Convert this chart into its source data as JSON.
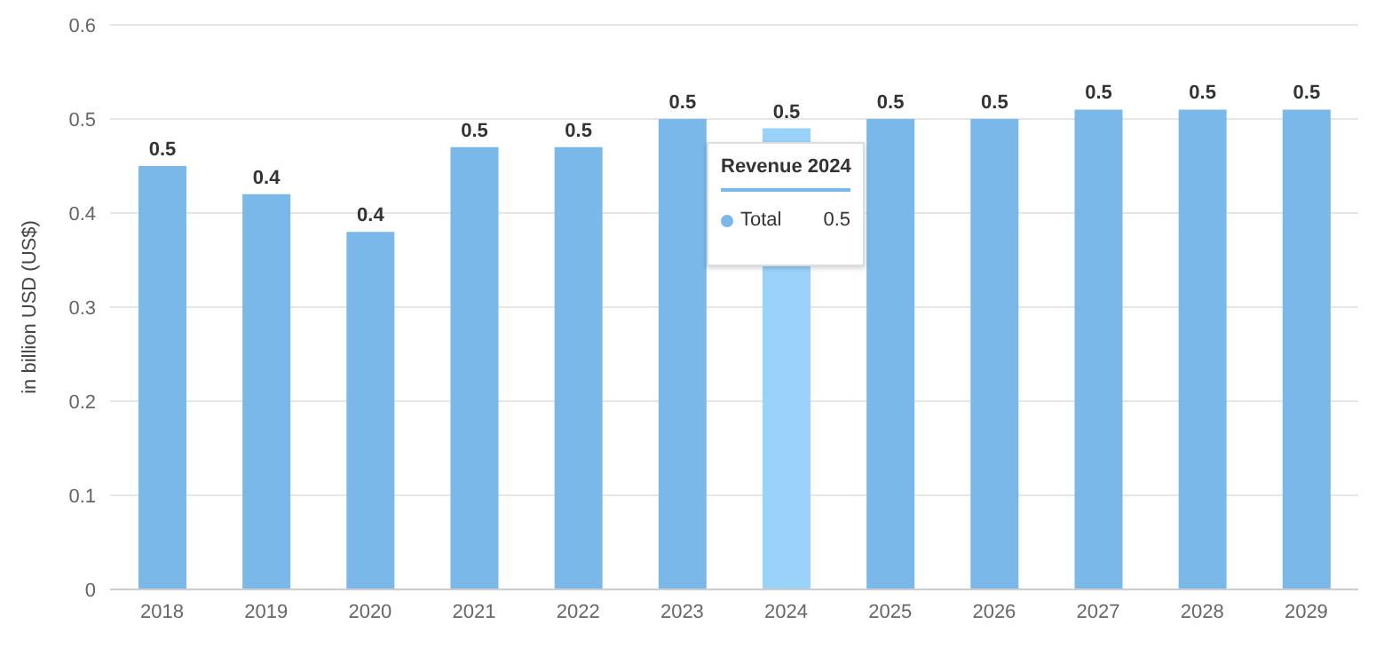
{
  "chart_data": {
    "type": "bar",
    "ylabel": "in billion USD (US$)",
    "categories": [
      "2018",
      "2019",
      "2020",
      "2021",
      "2022",
      "2023",
      "2024",
      "2025",
      "2026",
      "2027",
      "2028",
      "2029"
    ],
    "values": [
      0.45,
      0.42,
      0.38,
      0.47,
      0.47,
      0.5,
      0.49,
      0.5,
      0.5,
      0.51,
      0.51,
      0.51
    ],
    "value_labels": [
      "0.5",
      "0.4",
      "0.4",
      "0.5",
      "0.5",
      "0.5",
      "0.5",
      "0.5",
      "0.5",
      "0.5",
      "0.5",
      "0.5"
    ],
    "colors": [
      "#7ab8ea",
      "#7ab8ea",
      "#7ab8ea",
      "#7ab8ea",
      "#7ab8ea",
      "#7ab8ea",
      "#99d3fb",
      "#7ab8ea",
      "#7ab8ea",
      "#7ab8ea",
      "#7ab8ea",
      "#7ab8ea"
    ],
    "ylim": [
      0,
      0.6
    ],
    "yticks": [
      0,
      0.1,
      0.2,
      0.3,
      0.4,
      0.5,
      0.6
    ],
    "grid": "y",
    "annotations": [
      "Revenue 2024",
      "Total",
      "0.5"
    ]
  }
}
